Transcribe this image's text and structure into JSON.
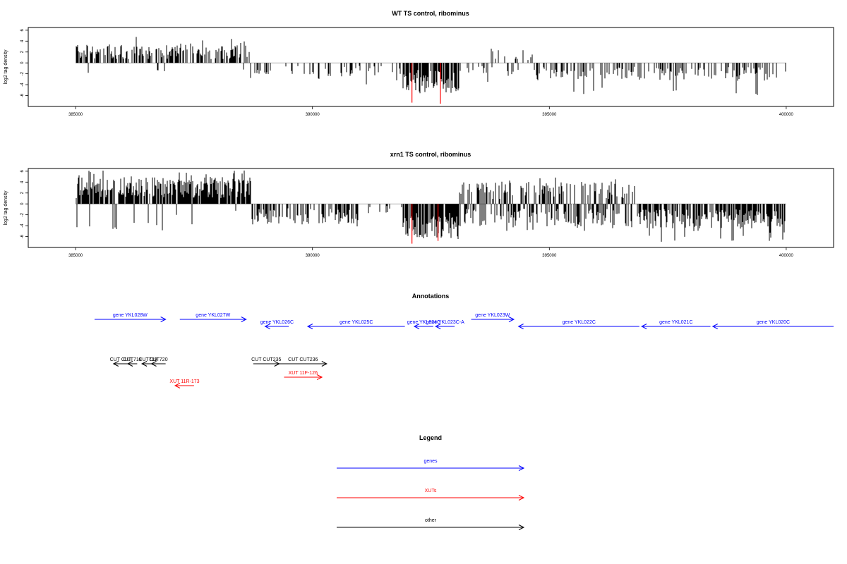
{
  "chart_data": [
    {
      "type": "bar",
      "title": "WT TS control, ribominus",
      "xlabel": "",
      "ylabel": "log2 tag density",
      "xlim": [
        384000,
        401000
      ],
      "ylim": [
        -8,
        6.5
      ],
      "xticks": [
        "385000",
        "390000",
        "395000",
        "400000"
      ],
      "yticks": [
        "6",
        "4",
        "2",
        "0",
        "-2",
        "-4",
        "-6"
      ],
      "color": "#000000",
      "highlight_color": "#ff0000",
      "highlight_bars": [
        {
          "x": 392100,
          "y": -7.3
        },
        {
          "x": 392700,
          "y": -7.5
        }
      ],
      "segments": [
        {
          "from": 385000,
          "to": 388700,
          "mode": "pos",
          "density": 0.55,
          "max": 4.8,
          "avg": 2.0
        },
        {
          "from": 388700,
          "to": 391900,
          "mode": "neg",
          "density": 0.22,
          "max": 4.0,
          "avg": 1.5
        },
        {
          "from": 391900,
          "to": 393100,
          "mode": "neg",
          "density": 0.85,
          "max": 6.7,
          "avg": 3.5
        },
        {
          "from": 393100,
          "to": 393700,
          "mode": "neg",
          "density": 0.2,
          "max": 3.5,
          "avg": 1.2
        },
        {
          "from": 393700,
          "to": 394700,
          "mode": "mix",
          "density": 0.3,
          "max": 3.5,
          "avg": 1.5
        },
        {
          "from": 394700,
          "to": 400000,
          "mode": "neg",
          "density": 0.35,
          "max": 6.5,
          "avg": 2.0
        }
      ]
    },
    {
      "type": "bar",
      "title": "xrn1 TS control, ribominus",
      "xlabel": "",
      "ylabel": "log2 tag density",
      "xlim": [
        384000,
        401000
      ],
      "ylim": [
        -8,
        6.5
      ],
      "xticks": [
        "385000",
        "390000",
        "395000",
        "400000"
      ],
      "yticks": [
        "6",
        "4",
        "2",
        "0",
        "-2",
        "-4",
        "-6"
      ],
      "color": "#000000",
      "highlight_color": "#ff0000",
      "highlight_bars": [
        {
          "x": 392100,
          "y": -7.3
        },
        {
          "x": 392650,
          "y": -6.8
        }
      ],
      "segments": [
        {
          "from": 385000,
          "to": 388700,
          "mode": "pos",
          "density": 0.85,
          "max": 6.2,
          "avg": 3.0
        },
        {
          "from": 388700,
          "to": 391000,
          "mode": "neg",
          "density": 0.55,
          "max": 4.5,
          "avg": 2.3
        },
        {
          "from": 391000,
          "to": 391900,
          "mode": "neg",
          "density": 0.15,
          "max": 2.0,
          "avg": 1.0
        },
        {
          "from": 391900,
          "to": 393100,
          "mode": "neg",
          "density": 0.9,
          "max": 7.0,
          "avg": 3.8
        },
        {
          "from": 393100,
          "to": 396800,
          "mode": "mix",
          "density": 0.8,
          "max": 5.0,
          "avg": 2.5
        },
        {
          "from": 396800,
          "to": 400000,
          "mode": "neg",
          "density": 0.7,
          "max": 7.0,
          "avg": 2.8
        }
      ]
    }
  ],
  "annotations": {
    "title": "Annotations",
    "items": [
      {
        "label": "gene YKL028W",
        "category": "gene",
        "from": 385400,
        "to": 386900,
        "row": 0
      },
      {
        "label": "gene YKL027W",
        "category": "gene",
        "from": 387200,
        "to": 388600,
        "row": 0
      },
      {
        "label": "gene YKL026C",
        "category": "gene",
        "from": 389500,
        "to": 389000,
        "row": 1
      },
      {
        "label": "gene YKL025C",
        "category": "gene",
        "from": 391950,
        "to": 389900,
        "row": 1
      },
      {
        "label": "gene YKL024C",
        "category": "gene",
        "from": 392550,
        "to": 392150,
        "row": 1
      },
      {
        "label": "gene YKL023C-A",
        "category": "gene",
        "from": 393000,
        "to": 392600,
        "row": 1
      },
      {
        "label": "gene YKL023W",
        "category": "gene",
        "from": 393350,
        "to": 394250,
        "row": 0
      },
      {
        "label": "gene YKL022C",
        "category": "gene",
        "from": 396900,
        "to": 394350,
        "row": 1
      },
      {
        "label": "gene YKL021C",
        "category": "gene",
        "from": 398400,
        "to": 396950,
        "row": 1
      },
      {
        "label": "gene YKL020C",
        "category": "gene",
        "from": 401000,
        "to": 398450,
        "row": 1
      },
      {
        "label": "CUT CUT",
        "category": "other",
        "from": 386100,
        "to": 385800,
        "row": 2
      },
      {
        "label": "CUT718",
        "category": "other",
        "from": 386300,
        "to": 386100,
        "row": 2
      },
      {
        "label": "CUT719",
        "category": "other",
        "from": 386650,
        "to": 386400,
        "row": 2
      },
      {
        "label": "CUT720",
        "category": "other",
        "from": 386900,
        "to": 386600,
        "row": 2
      },
      {
        "label": "CUT CUT235",
        "category": "other",
        "from": 388750,
        "to": 389300,
        "row": 2
      },
      {
        "label": "CUT CUT236",
        "category": "other",
        "from": 389300,
        "to": 390300,
        "row": 2
      },
      {
        "label": "XUT 11R-173",
        "category": "xut",
        "from": 387500,
        "to": 387100,
        "row": 4
      },
      {
        "label": "XUT 11F-126",
        "category": "xut",
        "from": 389400,
        "to": 390200,
        "row": 3
      }
    ]
  },
  "legend": {
    "title": "Legend",
    "items": [
      {
        "label": "genes",
        "color": "#0000ff"
      },
      {
        "label": "XUTs",
        "color": "#ff0000"
      },
      {
        "label": "other",
        "color": "#000000"
      }
    ]
  },
  "colors": {
    "gene": "#0000ff",
    "xut": "#ff0000",
    "other": "#000000",
    "zero_line": "#808080"
  }
}
